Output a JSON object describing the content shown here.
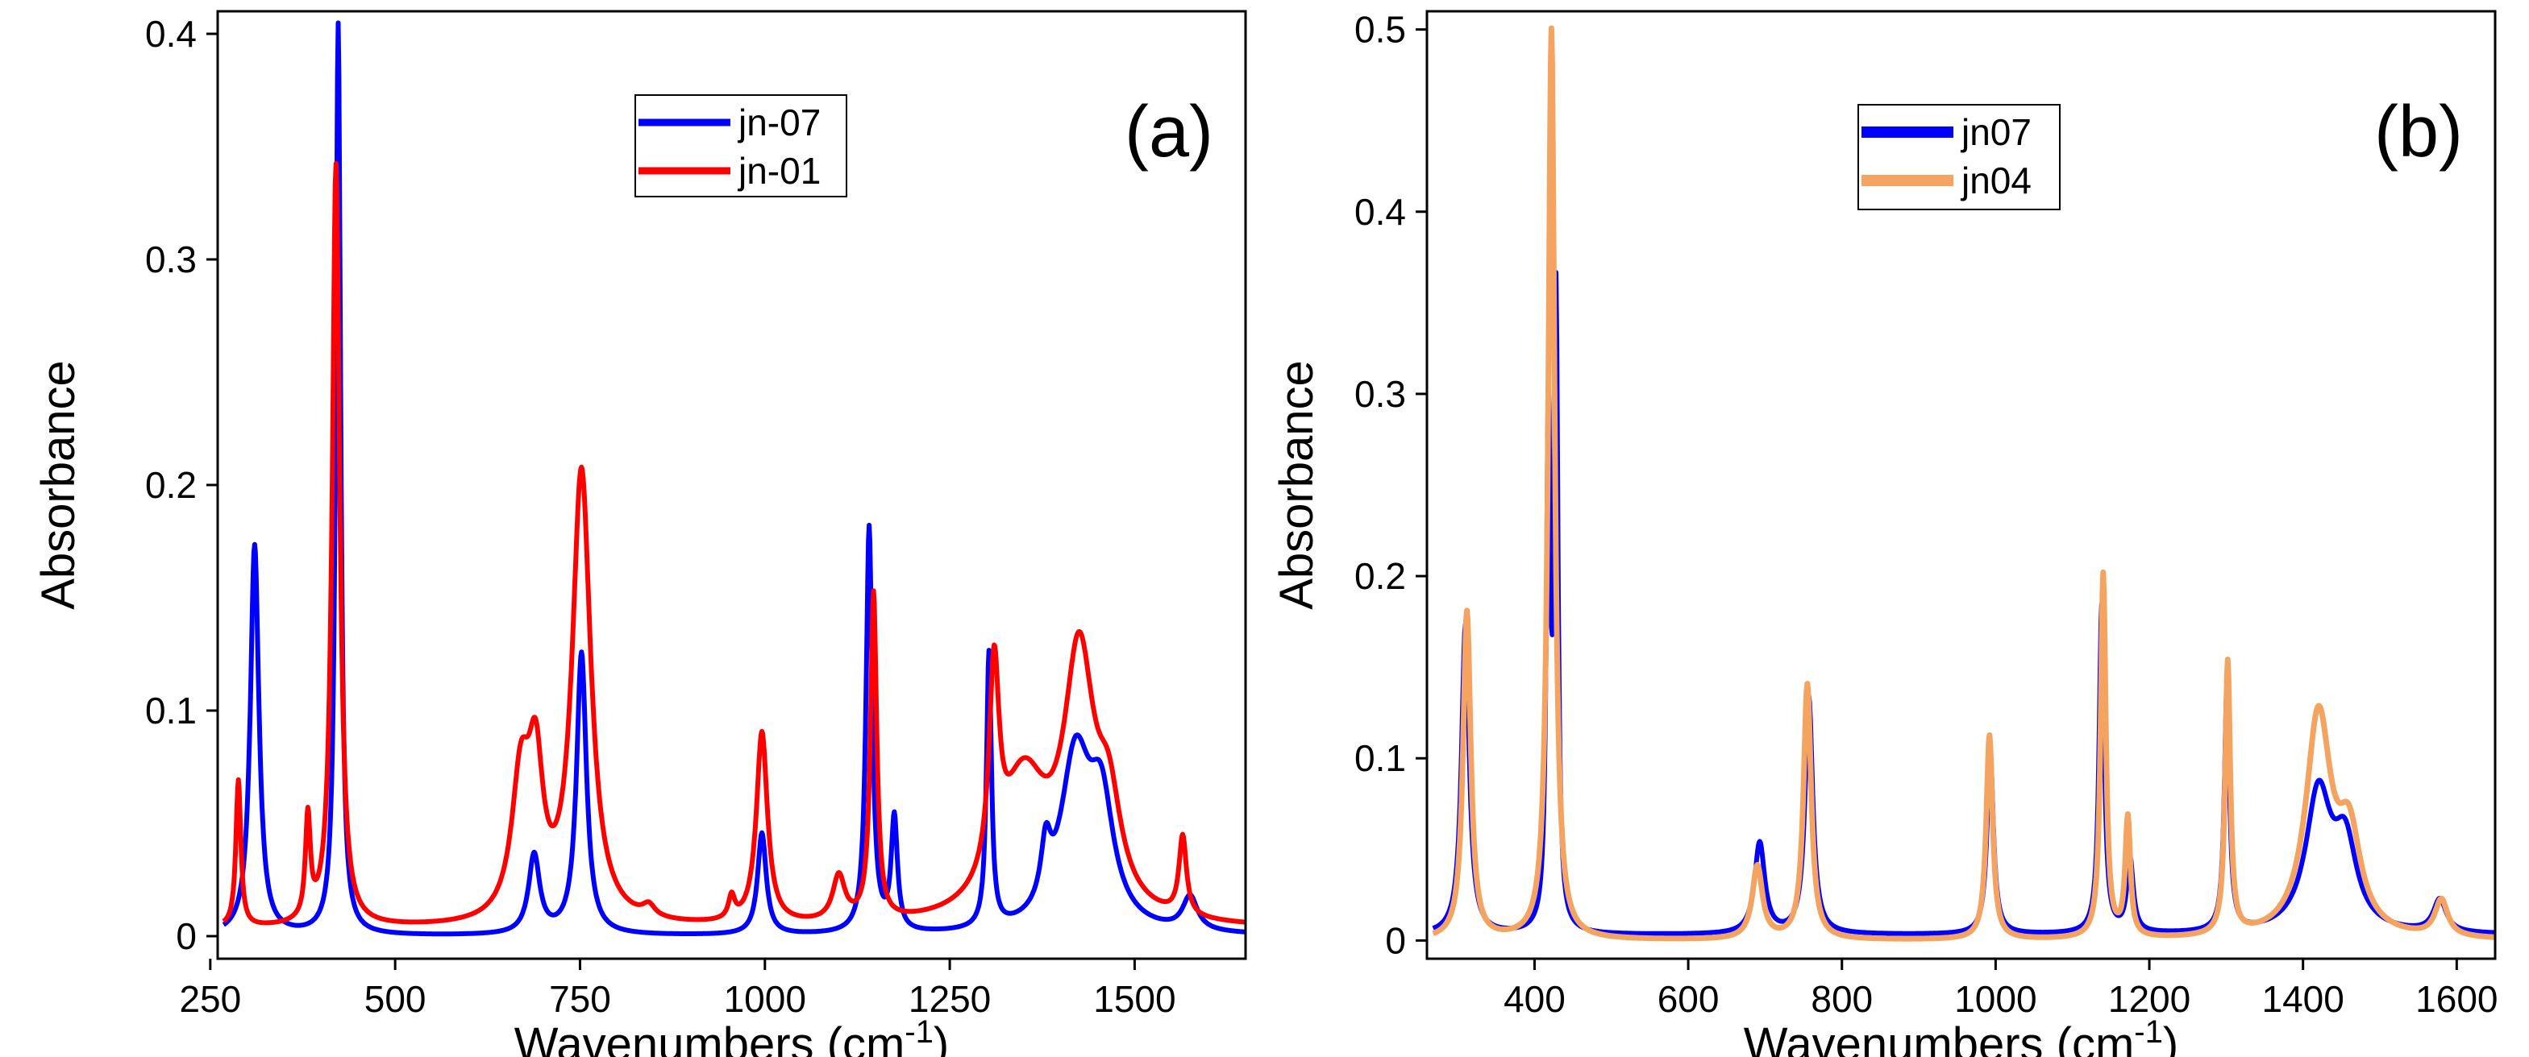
{
  "chart_data": [
    {
      "type": "line",
      "panel_label": "(a)",
      "xlabel": "Wavenumbers (cm",
      "xlabel_sup": "-1",
      "xlabel_close": ")",
      "ylabel": "Absorbance",
      "xlim": [
        260,
        1650
      ],
      "ylim": [
        -0.01,
        0.41
      ],
      "xticks": [
        250,
        500,
        750,
        1000,
        1250,
        1500
      ],
      "xtick_labels": [
        "250",
        "500",
        "750",
        "1000",
        "1250",
        "1500"
      ],
      "yticks": [
        0,
        0.1,
        0.2,
        0.3,
        0.4
      ],
      "ytick_labels": [
        "0",
        "0.1",
        "0.2",
        "0.3",
        "0.4"
      ],
      "grid": false,
      "legend_position": "top-center",
      "series": [
        {
          "name": "jn-07",
          "color": "#0000ff",
          "baseline": 0.0,
          "peaks": [
            [
              310,
              0.173,
              7
            ],
            [
              423,
              0.404,
              4
            ],
            [
              688,
              0.035,
              9
            ],
            [
              752,
              0.125,
              8
            ],
            [
              996,
              0.045,
              7
            ],
            [
              1141,
              0.18,
              5
            ],
            [
              1175,
              0.05,
              5
            ],
            [
              1303,
              0.122,
              4
            ],
            [
              1380,
              0.025,
              8
            ],
            [
              1420,
              0.075,
              25
            ],
            [
              1455,
              0.05,
              20
            ],
            [
              1575,
              0.015,
              12
            ]
          ]
        },
        {
          "name": "jn-01",
          "color": "#ff0000",
          "baseline": 0.003,
          "peaks": [
            [
              288,
              0.065,
              4
            ],
            [
              382,
              0.045,
              4
            ],
            [
              420,
              0.338,
              6
            ],
            [
              670,
              0.06,
              15
            ],
            [
              690,
              0.06,
              12
            ],
            [
              752,
              0.2,
              15
            ],
            [
              843,
              0.005,
              10
            ],
            [
              955,
              0.01,
              5
            ],
            [
              996,
              0.085,
              9
            ],
            [
              1100,
              0.02,
              10
            ],
            [
              1147,
              0.145,
              5
            ],
            [
              1310,
              0.09,
              8
            ],
            [
              1350,
              0.06,
              40
            ],
            [
              1425,
              0.11,
              25
            ],
            [
              1465,
              0.04,
              20
            ],
            [
              1565,
              0.035,
              6
            ]
          ]
        }
      ]
    },
    {
      "type": "line",
      "panel_label": "(b)",
      "xlabel": "Wavenumbers (cm",
      "xlabel_sup": "-1",
      "xlabel_close": ")",
      "ylabel": "Absorbance",
      "xlim": [
        260,
        1650
      ],
      "ylim": [
        -0.01,
        0.51
      ],
      "xticks": [
        400,
        600,
        800,
        1000,
        1200,
        1400,
        1600
      ],
      "xtick_labels": [
        "400",
        "600",
        "800",
        "1000",
        "1200",
        "1400",
        "1600"
      ],
      "yticks": [
        0,
        0.1,
        0.2,
        0.3,
        0.4,
        0.5
      ],
      "ytick_labels": [
        "0",
        "0.1",
        "0.2",
        "0.3",
        "0.4",
        "0.5"
      ],
      "grid": false,
      "legend_position": "top-center",
      "series": [
        {
          "name": "jn07",
          "color": "#0000ff",
          "baseline": 0.003,
          "peaks": [
            [
              310,
              0.17,
              6
            ],
            [
              418,
              0.28,
              3
            ],
            [
              428,
              0.34,
              3
            ],
            [
              693,
              0.05,
              8
            ],
            [
              757,
              0.13,
              6
            ],
            [
              993,
              0.1,
              5
            ],
            [
              1138,
              0.18,
              4
            ],
            [
              1175,
              0.04,
              5
            ],
            [
              1301,
              0.135,
              4
            ],
            [
              1420,
              0.075,
              20
            ],
            [
              1455,
              0.045,
              18
            ],
            [
              1578,
              0.018,
              10
            ]
          ]
        },
        {
          "name": "jn04",
          "color": "#f4a460",
          "baseline": 0.0,
          "peaks": [
            [
              312,
              0.18,
              6
            ],
            [
              422,
              0.5,
              5
            ],
            [
              690,
              0.04,
              8
            ],
            [
              755,
              0.14,
              6
            ],
            [
              992,
              0.112,
              5
            ],
            [
              1140,
              0.2,
              4
            ],
            [
              1172,
              0.065,
              4
            ],
            [
              1302,
              0.15,
              4
            ],
            [
              1420,
              0.12,
              20
            ],
            [
              1460,
              0.05,
              18
            ],
            [
              1580,
              0.02,
              10
            ]
          ]
        }
      ]
    }
  ]
}
